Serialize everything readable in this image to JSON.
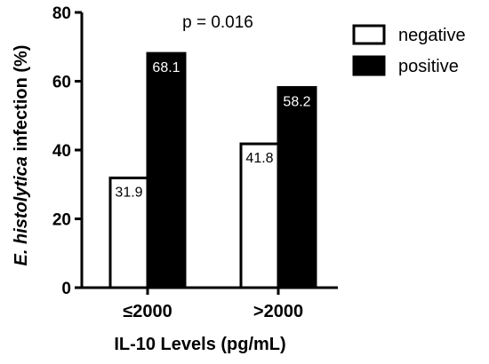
{
  "chart_data": {
    "type": "bar",
    "categories": [
      "≤2000",
      ">2000"
    ],
    "series": [
      {
        "name": "negative",
        "values": [
          31.9,
          41.8
        ],
        "color": "#ffffff"
      },
      {
        "name": "positive",
        "values": [
          68.1,
          58.2
        ],
        "color": "#000000"
      }
    ],
    "ylim": [
      0,
      80
    ],
    "yticks": [
      0,
      20,
      40,
      60,
      80
    ],
    "ylabel_italic": "E. histolytica",
    "ylabel_rest": " infection (%)",
    "xlabel": "IL-10 Levels (pg/mL)",
    "annotation": "p = 0.016",
    "legend_position": "top-right",
    "grid": false
  }
}
